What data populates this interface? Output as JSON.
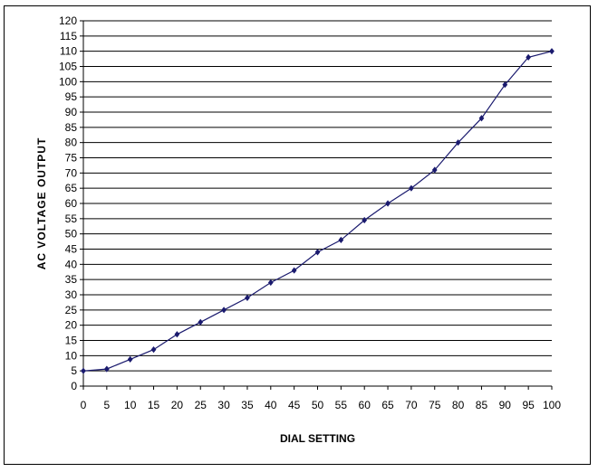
{
  "chart_data": {
    "type": "line",
    "title": "",
    "xlabel": "DIAL SETTING",
    "ylabel": "AC VOLTAGE OUTPUT",
    "xlim": [
      0,
      100
    ],
    "ylim": [
      0,
      120
    ],
    "x_ticks": [
      0,
      5,
      10,
      15,
      20,
      25,
      30,
      35,
      40,
      45,
      50,
      55,
      60,
      65,
      70,
      75,
      80,
      85,
      90,
      95,
      100
    ],
    "y_ticks": [
      0,
      5,
      10,
      15,
      20,
      25,
      30,
      35,
      40,
      45,
      50,
      55,
      60,
      65,
      70,
      75,
      80,
      85,
      90,
      95,
      100,
      105,
      110,
      115,
      120
    ],
    "grid": "horizontal",
    "legend": "none",
    "series": [
      {
        "color": "#1a1a6e",
        "marker": "diamond",
        "x": [
          0,
          5,
          10,
          15,
          20,
          25,
          30,
          35,
          40,
          45,
          50,
          55,
          60,
          65,
          70,
          75,
          80,
          85,
          90,
          95,
          100
        ],
        "y": [
          5,
          5.6,
          8.8,
          12,
          17,
          21,
          25,
          29,
          34,
          38,
          44,
          48,
          54.5,
          60,
          65,
          71,
          80,
          88,
          99,
          108,
          110
        ]
      }
    ]
  }
}
